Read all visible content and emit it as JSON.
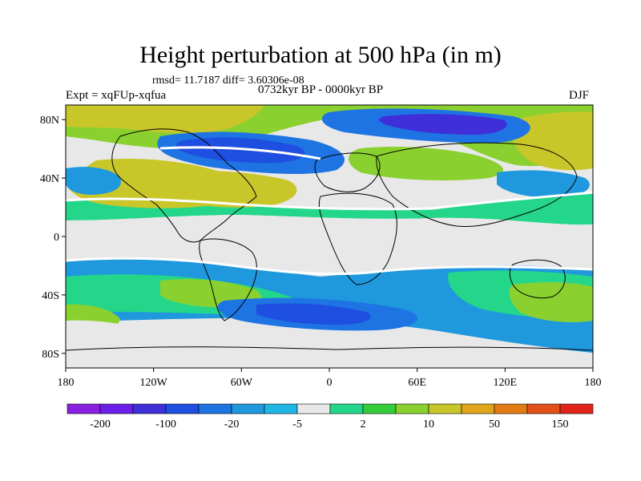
{
  "header": {
    "title": "Height perturbation at 500 hPa (in m)",
    "stats": "rmsd= 11.7187 diff= 3.60306e-08",
    "experiment": "Expt = xqFUp-xqfua",
    "period": "0732kyr BP - 0000kyr BP",
    "season": "DJF"
  },
  "axes": {
    "lat_labels": [
      {
        "text": "80N",
        "lat": 80
      },
      {
        "text": "40N",
        "lat": 40
      },
      {
        "text": "0",
        "lat": 0
      },
      {
        "text": "40S",
        "lat": -40
      },
      {
        "text": "80S",
        "lat": -80
      }
    ],
    "lon_labels": [
      {
        "text": "180",
        "lon": -180
      },
      {
        "text": "120W",
        "lon": -120
      },
      {
        "text": "60W",
        "lon": -60
      },
      {
        "text": "0",
        "lon": 0
      },
      {
        "text": "60E",
        "lon": 60
      },
      {
        "text": "120E",
        "lon": 120
      },
      {
        "text": "180",
        "lon": 180
      }
    ]
  },
  "colorbar": {
    "colors": [
      "#8a20e0",
      "#6a1ee8",
      "#3f2fd8",
      "#1f4fe0",
      "#1e74e2",
      "#1f98dd",
      "#20b6e6",
      "#e8e8e8",
      "#23d68a",
      "#35cc3a",
      "#8ad12f",
      "#c9c62a",
      "#e1a51c",
      "#e37b15",
      "#e2501a",
      "#e0241c"
    ],
    "labels": [
      {
        "text": "-200",
        "index": 1
      },
      {
        "text": "-100",
        "index": 3
      },
      {
        "text": "-20",
        "index": 5
      },
      {
        "text": "-5",
        "index": 7
      },
      {
        "text": "2",
        "index": 9
      },
      {
        "text": "10",
        "index": 11
      },
      {
        "text": "50",
        "index": 13
      },
      {
        "text": "150",
        "index": 15
      }
    ]
  }
}
